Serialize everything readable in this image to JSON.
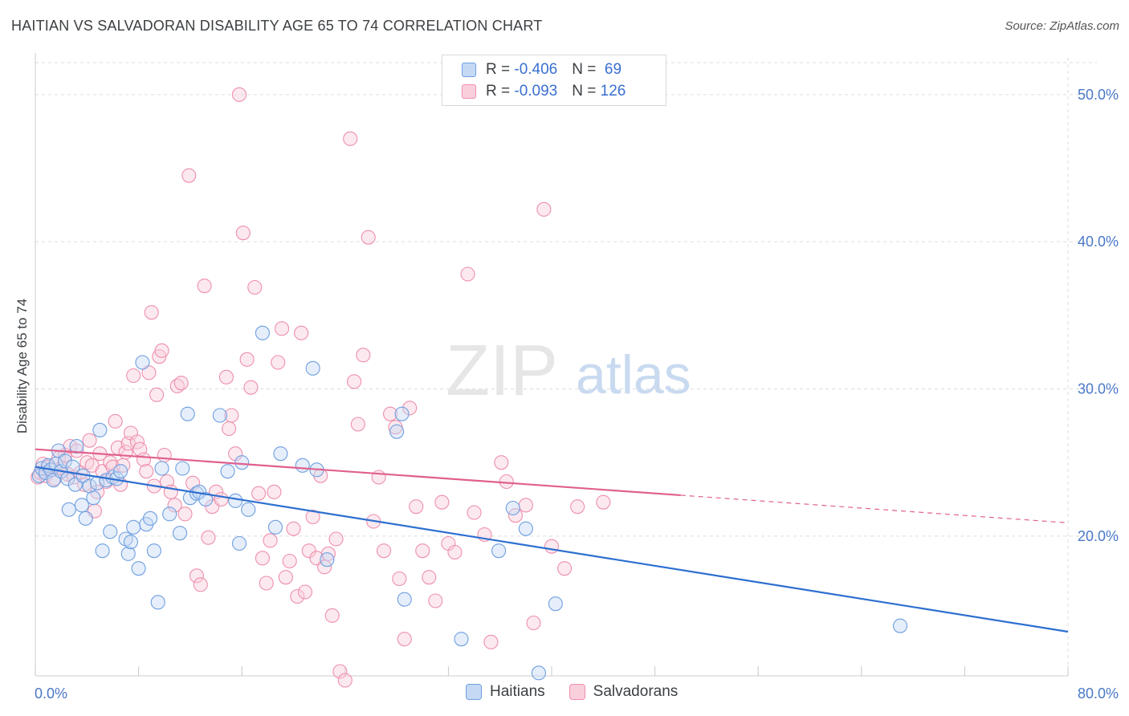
{
  "title": "HAITIAN VS SALVADORAN DISABILITY AGE 65 TO 74 CORRELATION CHART",
  "source": "Source: ZipAtlas.com",
  "watermark": {
    "zip": "ZIP",
    "atlas": "atlas"
  },
  "colors": {
    "haitians": "#6f9fe0",
    "haitians_fill": "#c5d9f5",
    "haitians_line": "#2d6fd0",
    "salvadorans": "#ee8fab",
    "salvadorans_fill": "#f9cfdc",
    "salvadorans_line": "#e0608e",
    "axis_label": "#4a78c8",
    "grid": "#dddddd"
  },
  "legend": {
    "rows": [
      {
        "r_label": "R = ",
        "r_value": "-0.406",
        "n_label": "N = ",
        "n_value": " 69"
      },
      {
        "r_label": "R = ",
        "r_value": "-0.093",
        "n_label": "N = ",
        "n_value": "126"
      }
    ]
  },
  "bottom_legend": {
    "haitians": "Haitians",
    "salvadorans": "Salvadorans"
  },
  "chart_data": {
    "type": "scatter",
    "ylabel": "Disability Age 65 to 74",
    "xlabel": "",
    "xlim": [
      0,
      80
    ],
    "ylim": [
      10.5,
      52.5
    ],
    "x_tick_labels": [
      {
        "value": 0,
        "label": "0.0%"
      },
      {
        "value": 80,
        "label": "80.0%"
      }
    ],
    "y_ticks": [
      {
        "value": 20,
        "label": "20.0%"
      },
      {
        "value": 30,
        "label": "30.0%"
      },
      {
        "value": 40,
        "label": "40.0%"
      },
      {
        "value": 50,
        "label": "50.0%"
      }
    ],
    "grid": true,
    "legend_position": "top-center",
    "series": [
      {
        "name": "Haitians",
        "R": -0.406,
        "N": 69,
        "trend": {
          "x": [
            0,
            80
          ],
          "y": [
            24.7,
            13.5
          ],
          "dashed_from": null
        },
        "points": [
          [
            0.3,
            24.1
          ],
          [
            0.5,
            24.6
          ],
          [
            0.8,
            24.3
          ],
          [
            1.0,
            24.8
          ],
          [
            1.2,
            24.5
          ],
          [
            1.4,
            23.8
          ],
          [
            1.6,
            24.9
          ],
          [
            1.8,
            25.8
          ],
          [
            2.0,
            24.4
          ],
          [
            2.3,
            25.1
          ],
          [
            2.5,
            23.9
          ],
          [
            2.6,
            21.8
          ],
          [
            2.9,
            24.7
          ],
          [
            3.1,
            23.5
          ],
          [
            3.2,
            26.1
          ],
          [
            3.6,
            22.1
          ],
          [
            3.7,
            24.1
          ],
          [
            3.9,
            21.2
          ],
          [
            4.2,
            23.4
          ],
          [
            4.5,
            22.6
          ],
          [
            4.8,
            23.6
          ],
          [
            5.0,
            27.2
          ],
          [
            5.2,
            19.0
          ],
          [
            5.5,
            23.8
          ],
          [
            5.8,
            20.3
          ],
          [
            6.0,
            24.0
          ],
          [
            6.3,
            23.9
          ],
          [
            6.6,
            24.4
          ],
          [
            7.0,
            19.8
          ],
          [
            7.2,
            18.8
          ],
          [
            7.4,
            19.6
          ],
          [
            7.6,
            20.6
          ],
          [
            8.0,
            17.8
          ],
          [
            8.3,
            31.8
          ],
          [
            8.6,
            20.8
          ],
          [
            8.9,
            21.2
          ],
          [
            9.2,
            19.0
          ],
          [
            9.5,
            15.5
          ],
          [
            9.8,
            24.6
          ],
          [
            10.4,
            21.5
          ],
          [
            11.2,
            20.2
          ],
          [
            11.4,
            24.6
          ],
          [
            11.8,
            28.3
          ],
          [
            12.0,
            22.6
          ],
          [
            12.5,
            22.9
          ],
          [
            12.7,
            23.0
          ],
          [
            13.2,
            22.5
          ],
          [
            14.3,
            28.2
          ],
          [
            14.9,
            24.4
          ],
          [
            15.5,
            22.4
          ],
          [
            15.8,
            19.5
          ],
          [
            16.0,
            25.0
          ],
          [
            16.5,
            21.8
          ],
          [
            17.6,
            33.8
          ],
          [
            18.6,
            20.6
          ],
          [
            19.0,
            25.6
          ],
          [
            20.7,
            24.8
          ],
          [
            21.5,
            31.4
          ],
          [
            21.8,
            24.5
          ],
          [
            22.6,
            18.4
          ],
          [
            28.0,
            27.1
          ],
          [
            28.4,
            28.3
          ],
          [
            28.6,
            15.7
          ],
          [
            33.0,
            13.0
          ],
          [
            35.9,
            19.0
          ],
          [
            37.0,
            21.9
          ],
          [
            38.0,
            20.5
          ],
          [
            39.0,
            10.7
          ],
          [
            40.3,
            15.4
          ],
          [
            67.0,
            13.9
          ]
        ]
      },
      {
        "name": "Salvadorans",
        "R": -0.093,
        "N": 126,
        "trend": {
          "x": [
            0,
            80
          ],
          "y": [
            25.9,
            20.9
          ],
          "solid_until": 50
        },
        "points": [
          [
            0.2,
            24.0
          ],
          [
            0.4,
            24.3
          ],
          [
            0.6,
            24.9
          ],
          [
            0.8,
            24.1
          ],
          [
            1.0,
            24.7
          ],
          [
            1.3,
            24.5
          ],
          [
            1.5,
            23.9
          ],
          [
            1.8,
            25.3
          ],
          [
            2.0,
            24.6
          ],
          [
            2.3,
            25.5
          ],
          [
            2.5,
            24.2
          ],
          [
            2.7,
            26.1
          ],
          [
            3.0,
            24.0
          ],
          [
            3.2,
            25.8
          ],
          [
            3.5,
            24.3
          ],
          [
            3.8,
            23.5
          ],
          [
            4.0,
            25.0
          ],
          [
            4.2,
            26.5
          ],
          [
            4.4,
            24.8
          ],
          [
            4.6,
            21.7
          ],
          [
            4.8,
            23.0
          ],
          [
            5.0,
            25.6
          ],
          [
            5.2,
            24.4
          ],
          [
            5.5,
            23.7
          ],
          [
            5.8,
            25.0
          ],
          [
            6.0,
            24.7
          ],
          [
            6.2,
            27.8
          ],
          [
            6.4,
            26.0
          ],
          [
            6.6,
            23.5
          ],
          [
            6.8,
            24.8
          ],
          [
            7.0,
            25.7
          ],
          [
            7.2,
            26.3
          ],
          [
            7.4,
            27.0
          ],
          [
            7.6,
            30.9
          ],
          [
            7.9,
            26.4
          ],
          [
            8.1,
            25.9
          ],
          [
            8.4,
            25.2
          ],
          [
            8.6,
            24.4
          ],
          [
            8.8,
            31.1
          ],
          [
            9.0,
            35.2
          ],
          [
            9.2,
            23.4
          ],
          [
            9.4,
            29.6
          ],
          [
            9.6,
            32.2
          ],
          [
            9.8,
            32.6
          ],
          [
            10.0,
            25.5
          ],
          [
            10.2,
            23.7
          ],
          [
            10.5,
            23.0
          ],
          [
            10.8,
            22.1
          ],
          [
            11.0,
            30.2
          ],
          [
            11.3,
            30.4
          ],
          [
            11.6,
            21.5
          ],
          [
            11.9,
            44.5
          ],
          [
            12.2,
            23.6
          ],
          [
            12.5,
            17.3
          ],
          [
            12.8,
            16.7
          ],
          [
            13.1,
            37.0
          ],
          [
            13.4,
            19.9
          ],
          [
            13.7,
            22.0
          ],
          [
            14.0,
            23.0
          ],
          [
            14.4,
            22.5
          ],
          [
            14.8,
            30.8
          ],
          [
            15.0,
            27.3
          ],
          [
            15.2,
            28.2
          ],
          [
            15.5,
            25.6
          ],
          [
            15.8,
            50.0
          ],
          [
            16.1,
            40.6
          ],
          [
            16.4,
            32.0
          ],
          [
            16.7,
            30.1
          ],
          [
            17.0,
            36.9
          ],
          [
            17.3,
            22.9
          ],
          [
            17.6,
            18.5
          ],
          [
            17.9,
            16.8
          ],
          [
            18.2,
            19.7
          ],
          [
            18.5,
            23.0
          ],
          [
            18.8,
            31.8
          ],
          [
            19.1,
            34.1
          ],
          [
            19.4,
            17.2
          ],
          [
            19.7,
            18.3
          ],
          [
            20.0,
            20.5
          ],
          [
            20.3,
            15.9
          ],
          [
            20.6,
            33.8
          ],
          [
            20.9,
            16.2
          ],
          [
            21.2,
            19.0
          ],
          [
            21.5,
            21.3
          ],
          [
            21.8,
            18.5
          ],
          [
            22.1,
            24.1
          ],
          [
            22.4,
            17.9
          ],
          [
            22.7,
            18.8
          ],
          [
            23.0,
            14.6
          ],
          [
            23.3,
            19.8
          ],
          [
            23.6,
            10.8
          ],
          [
            24.0,
            10.2
          ],
          [
            24.4,
            47.0
          ],
          [
            24.7,
            30.5
          ],
          [
            25.0,
            27.6
          ],
          [
            25.4,
            32.3
          ],
          [
            25.8,
            40.3
          ],
          [
            26.2,
            21.0
          ],
          [
            26.6,
            24.0
          ],
          [
            27.0,
            19.0
          ],
          [
            27.5,
            28.3
          ],
          [
            27.9,
            27.4
          ],
          [
            28.2,
            17.1
          ],
          [
            28.6,
            13.0
          ],
          [
            29.0,
            28.7
          ],
          [
            29.5,
            22.0
          ],
          [
            30.0,
            19.0
          ],
          [
            30.5,
            17.2
          ],
          [
            31.0,
            15.6
          ],
          [
            31.5,
            22.3
          ],
          [
            32.0,
            19.5
          ],
          [
            32.5,
            18.9
          ],
          [
            33.5,
            37.8
          ],
          [
            34.0,
            21.6
          ],
          [
            34.8,
            20.1
          ],
          [
            35.3,
            12.8
          ],
          [
            36.1,
            25.0
          ],
          [
            36.5,
            23.7
          ],
          [
            37.2,
            21.4
          ],
          [
            38.0,
            22.1
          ],
          [
            38.6,
            14.1
          ],
          [
            39.4,
            42.2
          ],
          [
            40.0,
            19.3
          ],
          [
            41.0,
            17.8
          ],
          [
            42.0,
            22.0
          ],
          [
            44.0,
            22.3
          ]
        ]
      }
    ]
  }
}
